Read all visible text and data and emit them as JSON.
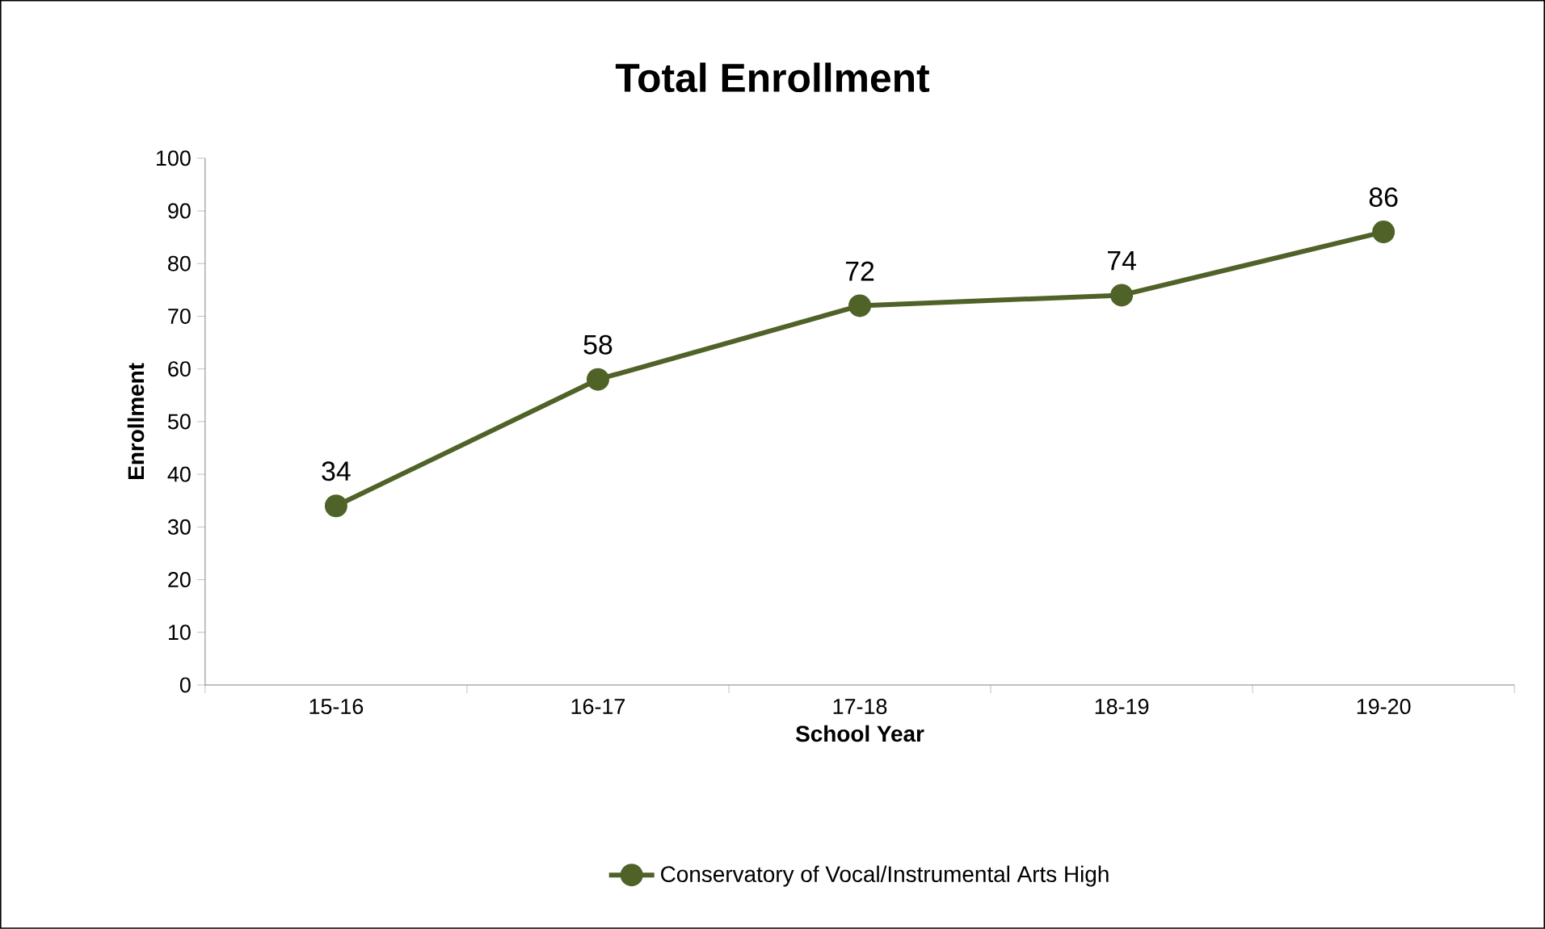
{
  "chart_data": {
    "type": "line",
    "title": "Total Enrollment",
    "xlabel": "School Year",
    "ylabel": "Enrollment",
    "categories": [
      "15-16",
      "16-17",
      "17-18",
      "18-19",
      "19-20"
    ],
    "series": [
      {
        "name": "Conservatory of Vocal/Instrumental Arts High",
        "color": "#4f6228",
        "values": [
          34,
          58,
          72,
          74,
          86
        ]
      }
    ],
    "ylim": [
      0,
      100
    ],
    "yticks": [
      0,
      10,
      20,
      30,
      40,
      50,
      60,
      70,
      80,
      90,
      100
    ],
    "data_labels": true,
    "legend": "bottom",
    "marker": "circle",
    "line_style": "solid",
    "grid": false
  }
}
